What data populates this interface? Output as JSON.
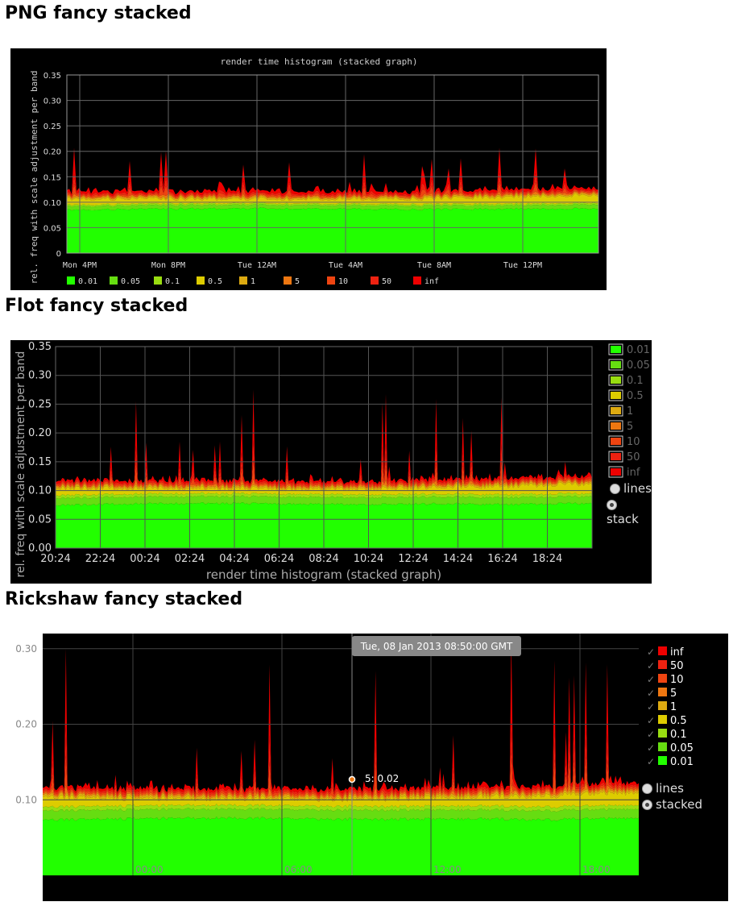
{
  "sections": {
    "png_title": "PNG fancy stacked",
    "flot_title": "Flot fancy stacked",
    "rickshaw_title": "Rickshaw fancy stacked"
  },
  "colors": {
    "0.01": "#22ff00",
    "0.05": "#66dd11",
    "0.1": "#99dd11",
    "0.5": "#ddcc00",
    "1": "#ddaa11",
    "5": "#ee7711",
    "10": "#ee4411",
    "50": "#ee2211",
    "inf": "#ee0000"
  },
  "png": {
    "title": "render time histogram (stacked graph)",
    "ylabel": "rel. freq with scale adjustment per band"
  },
  "flot": {
    "xlabel": "render time histogram (stacked graph)",
    "ylabel": "rel. freq with scale adjustment per band",
    "option_lines": "lines",
    "option_stack": "stack"
  },
  "rickshaw": {
    "tooltip": "Tue, 08 Jan 2013 08:50:00 GMT",
    "point_label": "5: 0.02",
    "option_lines": "lines",
    "option_stacked": "stacked"
  },
  "chart_data": [
    {
      "id": "png",
      "type": "area",
      "title": "render time histogram (stacked graph)",
      "ylabel": "rel. freq with scale adjustment per band",
      "ylim": [
        0,
        0.35
      ],
      "yticks": [
        "0",
        "0.05",
        "0.10",
        "0.15",
        "0.20",
        "0.25",
        "0.30",
        "0.35"
      ],
      "xticks": [
        "Mon  4PM",
        "Mon  8PM",
        "Tue 12AM",
        "Tue  4AM",
        "Tue  8AM",
        "Tue 12PM"
      ],
      "grid": true,
      "legend": "bottom",
      "series": [
        {
          "name": "0.01",
          "values": [
            0.085,
            0.087,
            0.088,
            0.087,
            0.086,
            0.087,
            0.088
          ]
        },
        {
          "name": "0.05",
          "values": [
            0.007,
            0.007,
            0.007,
            0.007,
            0.007,
            0.007,
            0.008
          ]
        },
        {
          "name": "0.1",
          "values": [
            0.003,
            0.003,
            0.003,
            0.003,
            0.003,
            0.003,
            0.003
          ]
        },
        {
          "name": "0.5",
          "values": [
            0.012,
            0.01,
            0.009,
            0.009,
            0.011,
            0.014,
            0.016
          ]
        },
        {
          "name": "1",
          "values": [
            0.003,
            0.003,
            0.003,
            0.003,
            0.003,
            0.003,
            0.003
          ]
        },
        {
          "name": "5",
          "values": [
            0.002,
            0.002,
            0.002,
            0.002,
            0.002,
            0.002,
            0.002
          ]
        },
        {
          "name": "10",
          "values": [
            0.002,
            0.002,
            0.002,
            0.002,
            0.002,
            0.002,
            0.002
          ]
        },
        {
          "name": "50",
          "values": [
            0.002,
            0.002,
            0.002,
            0.002,
            0.002,
            0.002,
            0.002
          ]
        },
        {
          "name": "inf",
          "values": [
            0.003,
            0.003,
            0.003,
            0.003,
            0.003,
            0.003,
            0.003
          ]
        }
      ]
    },
    {
      "id": "flot",
      "type": "area",
      "xlabel": "render time histogram (stacked graph)",
      "ylabel": "rel. freq with scale adjustment per band",
      "ylim": [
        0,
        0.35
      ],
      "yticks": [
        "0.00",
        "0.05",
        "0.10",
        "0.15",
        "0.20",
        "0.25",
        "0.30",
        "0.35"
      ],
      "xticks": [
        "20:24",
        "22:24",
        "00:24",
        "02:24",
        "04:24",
        "06:24",
        "08:24",
        "10:24",
        "12:24",
        "14:24",
        "16:24",
        "18:24"
      ],
      "grid": true,
      "legend": "right",
      "series": [
        {
          "name": "0.01",
          "values": [
            0.075,
            0.077,
            0.078,
            0.077,
            0.076,
            0.077,
            0.076,
            0.078
          ]
        },
        {
          "name": "0.05",
          "values": [
            0.012,
            0.012,
            0.012,
            0.012,
            0.012,
            0.012,
            0.012,
            0.012
          ]
        },
        {
          "name": "0.1",
          "values": [
            0.005,
            0.005,
            0.005,
            0.005,
            0.005,
            0.005,
            0.005,
            0.005
          ]
        },
        {
          "name": "0.5",
          "values": [
            0.013,
            0.01,
            0.009,
            0.009,
            0.01,
            0.012,
            0.015,
            0.017
          ]
        },
        {
          "name": "1",
          "values": [
            0.003,
            0.003,
            0.003,
            0.003,
            0.003,
            0.003,
            0.003,
            0.003
          ]
        },
        {
          "name": "5",
          "values": [
            0.002,
            0.002,
            0.002,
            0.002,
            0.002,
            0.002,
            0.002,
            0.002
          ]
        },
        {
          "name": "10",
          "values": [
            0.002,
            0.002,
            0.002,
            0.002,
            0.002,
            0.002,
            0.002,
            0.002
          ]
        },
        {
          "name": "50",
          "values": [
            0.002,
            0.002,
            0.002,
            0.002,
            0.002,
            0.002,
            0.002,
            0.002
          ]
        },
        {
          "name": "inf",
          "values": [
            0.002,
            0.002,
            0.002,
            0.002,
            0.002,
            0.002,
            0.002,
            0.002
          ]
        }
      ]
    },
    {
      "id": "rickshaw",
      "type": "area",
      "ylim": [
        0,
        0.32
      ],
      "yticks": [
        "0.10",
        "0.20",
        "0.30"
      ],
      "xticks": [
        "00:00",
        "06:00",
        "12:00",
        "18:00"
      ],
      "grid": true,
      "legend": "right",
      "series": [
        {
          "name": "inf",
          "values": [
            0.002,
            0.002,
            0.002,
            0.002,
            0.002,
            0.002,
            0.002,
            0.002
          ]
        },
        {
          "name": "50",
          "values": [
            0.002,
            0.002,
            0.002,
            0.002,
            0.002,
            0.002,
            0.002,
            0.002
          ]
        },
        {
          "name": "10",
          "values": [
            0.002,
            0.002,
            0.002,
            0.002,
            0.002,
            0.002,
            0.002,
            0.002
          ]
        },
        {
          "name": "5",
          "values": [
            0.002,
            0.002,
            0.002,
            0.002,
            0.002,
            0.002,
            0.002,
            0.002
          ]
        },
        {
          "name": "1",
          "values": [
            0.003,
            0.003,
            0.003,
            0.003,
            0.003,
            0.003,
            0.003,
            0.003
          ]
        },
        {
          "name": "0.5",
          "values": [
            0.013,
            0.01,
            0.009,
            0.009,
            0.01,
            0.012,
            0.015,
            0.017
          ]
        },
        {
          "name": "0.1",
          "values": [
            0.005,
            0.005,
            0.005,
            0.005,
            0.005,
            0.005,
            0.005,
            0.005
          ]
        },
        {
          "name": "0.05",
          "values": [
            0.012,
            0.012,
            0.012,
            0.012,
            0.012,
            0.012,
            0.012,
            0.012
          ]
        },
        {
          "name": "0.01",
          "values": [
            0.073,
            0.075,
            0.076,
            0.075,
            0.074,
            0.075,
            0.074,
            0.076
          ]
        }
      ]
    }
  ]
}
